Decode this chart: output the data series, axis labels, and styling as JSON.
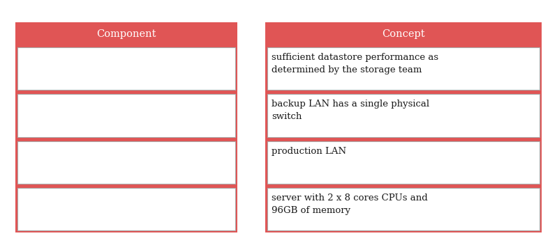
{
  "background_color": "#ffffff",
  "header_color": "#e05555",
  "header_text_color": "#ffffff",
  "cell_bg_color": "#ffffff",
  "cell_border_color": "#aaaaaa",
  "outer_border_color": "#e05555",
  "left_header": "Component",
  "right_header": "Concept",
  "left_rows": [
    "",
    "",
    "",
    ""
  ],
  "right_rows": [
    "sufficient datastore performance as\ndetermined by the storage team",
    "backup LAN has a single physical\nswitch",
    "production LAN",
    "server with 2 x 8 cores CPUs and\n96GB of memory"
  ],
  "font_size": 9.5,
  "header_font_size": 10.5,
  "fig_w": 7.98,
  "fig_h": 3.52,
  "dpi": 100
}
